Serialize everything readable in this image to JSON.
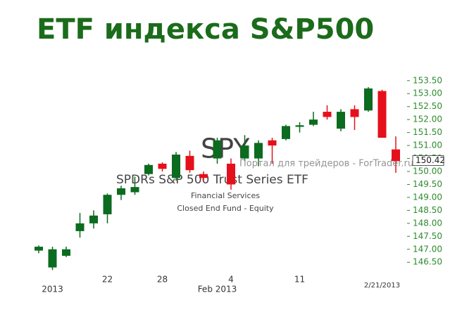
{
  "chart_data": {
    "type": "candlestick",
    "title": "ETF индекса S&P500",
    "symbol": "SPY",
    "fund_name": "SPDRs S&P 500 Trust Series ETF",
    "sector": "Financial Services",
    "fund_type": "Closed End Fund - Equity",
    "watermark": "Портал для трейдеров - ForTrader.ru",
    "categories": [
      null,
      null,
      null,
      null,
      null,
      "22",
      null,
      null,
      null,
      "28",
      null,
      null,
      null,
      null,
      "4",
      null,
      null,
      null,
      null,
      "11",
      null,
      null,
      null,
      null,
      null,
      null,
      null
    ],
    "categories_row2": [
      null,
      "2013",
      null,
      null,
      null,
      null,
      null,
      null,
      null,
      null,
      null,
      null,
      null,
      "Feb 2013",
      null,
      null,
      null,
      null,
      null,
      null,
      null,
      null,
      null,
      null,
      null,
      null,
      null
    ],
    "date_marker": "2/21/2013",
    "date_marker_index": 25,
    "up_color": "#0b6b1f",
    "down_color": "#e5101b",
    "open": [
      146.95,
      146.3,
      146.75,
      147.7,
      148.0,
      148.35,
      149.1,
      149.2,
      149.9,
      150.3,
      149.75,
      150.6,
      149.9,
      150.5,
      150.3,
      150.5,
      150.5,
      151.2,
      151.25,
      151.72,
      151.8,
      152.3,
      151.65,
      152.4,
      152.35,
      153.1,
      150.85
    ],
    "high": [
      147.15,
      147.1,
      147.1,
      148.4,
      148.5,
      149.15,
      149.45,
      149.8,
      150.3,
      150.35,
      150.75,
      150.8,
      150.0,
      151.3,
      150.5,
      151.4,
      151.2,
      151.3,
      151.8,
      151.9,
      152.3,
      152.55,
      152.4,
      152.55,
      153.25,
      153.15,
      151.35
    ],
    "low": [
      146.85,
      146.2,
      146.7,
      147.45,
      147.8,
      148.0,
      148.9,
      149.1,
      149.85,
      150.0,
      149.65,
      149.95,
      149.6,
      150.3,
      149.3,
      150.4,
      150.2,
      150.3,
      151.2,
      151.5,
      151.75,
      152.0,
      151.55,
      151.6,
      152.3,
      151.3,
      149.95
    ],
    "close": [
      147.1,
      147.0,
      147.0,
      148.0,
      148.3,
      149.1,
      149.35,
      149.4,
      150.25,
      150.1,
      150.65,
      150.05,
      149.75,
      151.2,
      149.5,
      151.0,
      151.1,
      151.0,
      151.75,
      151.78,
      152.0,
      152.1,
      152.3,
      152.1,
      153.2,
      151.3,
      150.4
    ],
    "last_price": 150.42,
    "ylim": [
      146.1,
      153.9
    ],
    "yticks": [
      {
        "value": 146.5,
        "label": "146.50"
      },
      {
        "value": 147,
        "label": "147.00"
      },
      {
        "value": 147.5,
        "label": "147.50"
      },
      {
        "value": 148,
        "label": "148.00"
      },
      {
        "value": 148.5,
        "label": "148.50"
      },
      {
        "value": 149,
        "label": "149.00"
      },
      {
        "value": 149.5,
        "label": "149.50"
      },
      {
        "value": 150,
        "label": "150.00"
      },
      {
        "value": 150.5,
        "label": "150.50"
      },
      {
        "value": 151,
        "label": "151.00"
      },
      {
        "value": 151.5,
        "label": "151.50"
      },
      {
        "value": 152,
        "label": "152.00"
      },
      {
        "value": 152.5,
        "label": "152.50"
      },
      {
        "value": 153,
        "label": "153.00"
      },
      {
        "value": 153.5,
        "label": "153.50"
      }
    ],
    "axis_color": "#2e8b2e"
  }
}
